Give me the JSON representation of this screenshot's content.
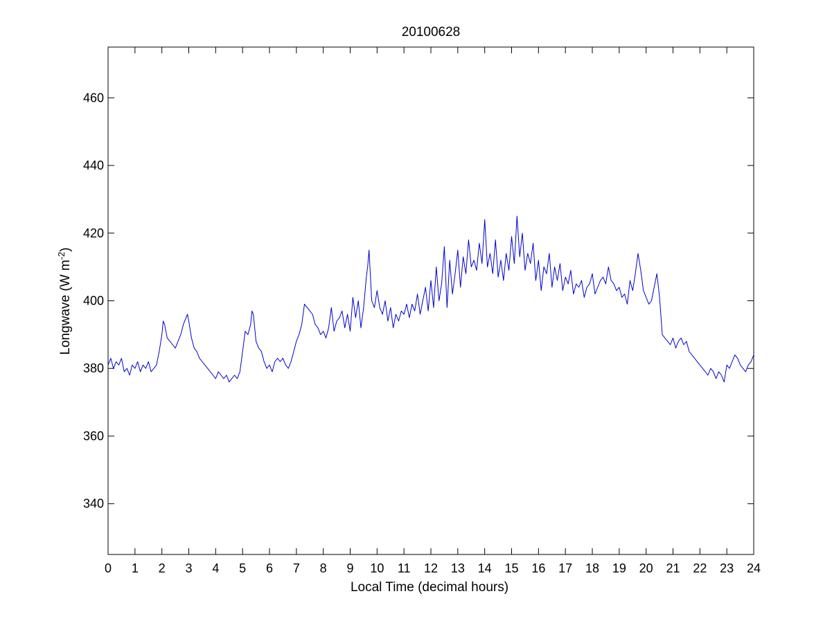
{
  "chart_data": {
    "type": "line",
    "title": "20100628",
    "xlabel": "Local Time (decimal hours)",
    "ylabel": "Longwave (W m",
    "ylabel_superscript": "-2",
    "ylabel_suffix": ")",
    "xlim": [
      0,
      24
    ],
    "ylim": [
      325,
      475
    ],
    "xticks": [
      0,
      1,
      2,
      3,
      4,
      5,
      6,
      7,
      8,
      9,
      10,
      11,
      12,
      13,
      14,
      15,
      16,
      17,
      18,
      19,
      20,
      21,
      22,
      23,
      24
    ],
    "xtick_labels": [
      "0",
      "1",
      "2",
      "3",
      "4",
      "5",
      "6",
      "7",
      "8",
      "9",
      "10",
      "11",
      "12",
      "13",
      "14",
      "15",
      "16",
      "17",
      "18",
      "19",
      "20",
      "21",
      "22",
      "23",
      "24"
    ],
    "yticks": [
      340,
      360,
      380,
      400,
      420,
      440,
      460
    ],
    "ytick_labels": [
      "340",
      "360",
      "380",
      "400",
      "420",
      "440",
      "460"
    ],
    "grid": false,
    "line_color": "#0000cc",
    "series": [
      {
        "x": [
          0.0,
          0.1,
          0.2,
          0.3,
          0.4,
          0.5,
          0.6,
          0.7,
          0.8,
          0.9,
          1.0,
          1.1,
          1.2,
          1.3,
          1.4,
          1.5,
          1.6,
          1.7,
          1.8,
          1.9,
          2.0,
          2.05,
          2.1,
          2.2,
          2.3,
          2.4,
          2.5,
          2.6,
          2.7,
          2.8,
          2.9,
          2.95,
          3.0,
          3.1,
          3.2,
          3.3,
          3.4,
          3.5,
          3.6,
          3.7,
          3.8,
          3.9,
          4.0,
          4.1,
          4.2,
          4.3,
          4.4,
          4.5,
          4.6,
          4.7,
          4.8,
          4.9,
          5.0,
          5.1,
          5.2,
          5.3,
          5.35,
          5.4,
          5.5,
          5.6,
          5.7,
          5.8,
          5.9,
          6.0,
          6.1,
          6.2,
          6.3,
          6.4,
          6.5,
          6.6,
          6.7,
          6.8,
          6.9,
          7.0,
          7.1,
          7.2,
          7.3,
          7.4,
          7.5,
          7.6,
          7.7,
          7.8,
          7.9,
          8.0,
          8.1,
          8.2,
          8.3,
          8.4,
          8.5,
          8.6,
          8.7,
          8.8,
          8.9,
          9.0,
          9.1,
          9.2,
          9.3,
          9.4,
          9.5,
          9.6,
          9.65,
          9.7,
          9.8,
          9.9,
          10.0,
          10.1,
          10.2,
          10.3,
          10.4,
          10.5,
          10.6,
          10.7,
          10.8,
          10.9,
          11.0,
          11.1,
          11.2,
          11.3,
          11.4,
          11.5,
          11.6,
          11.7,
          11.8,
          11.9,
          12.0,
          12.1,
          12.2,
          12.3,
          12.4,
          12.5,
          12.6,
          12.7,
          12.8,
          12.9,
          13.0,
          13.1,
          13.2,
          13.3,
          13.4,
          13.5,
          13.6,
          13.7,
          13.8,
          13.9,
          14.0,
          14.1,
          14.2,
          14.3,
          14.4,
          14.5,
          14.6,
          14.7,
          14.8,
          14.9,
          15.0,
          15.1,
          15.2,
          15.3,
          15.4,
          15.5,
          15.6,
          15.7,
          15.8,
          15.9,
          16.0,
          16.1,
          16.2,
          16.3,
          16.4,
          16.5,
          16.6,
          16.7,
          16.8,
          16.9,
          17.0,
          17.1,
          17.2,
          17.3,
          17.4,
          17.5,
          17.6,
          17.7,
          17.8,
          17.9,
          18.0,
          18.1,
          18.2,
          18.3,
          18.4,
          18.5,
          18.6,
          18.7,
          18.8,
          18.9,
          19.0,
          19.1,
          19.2,
          19.3,
          19.4,
          19.5,
          19.6,
          19.7,
          19.8,
          19.9,
          20.0,
          20.1,
          20.2,
          20.3,
          20.4,
          20.5,
          20.6,
          20.7,
          20.8,
          20.9,
          21.0,
          21.1,
          21.2,
          21.3,
          21.4,
          21.5,
          21.6,
          21.7,
          21.8,
          21.9,
          22.0,
          22.1,
          22.2,
          22.3,
          22.4,
          22.5,
          22.6,
          22.7,
          22.8,
          22.9,
          23.0,
          23.1,
          23.2,
          23.3,
          23.4,
          23.5,
          23.6,
          23.7,
          23.8,
          23.9,
          24.0
        ],
        "y": [
          381,
          383,
          380,
          382,
          381,
          383,
          379,
          380,
          378,
          381,
          380,
          382,
          379,
          381,
          380,
          382,
          379,
          380,
          381,
          385,
          390,
          394,
          393,
          389,
          388,
          387,
          386,
          388,
          390,
          393,
          395,
          396,
          394,
          389,
          386,
          385,
          383,
          382,
          381,
          380,
          379,
          378,
          377,
          379,
          378,
          377,
          378,
          376,
          377,
          378,
          377,
          379,
          385,
          391,
          390,
          393,
          397,
          396,
          388,
          386,
          385,
          382,
          380,
          381,
          379,
          382,
          383,
          382,
          383,
          381,
          380,
          382,
          385,
          388,
          390,
          393,
          399,
          398,
          397,
          396,
          393,
          392,
          390,
          391,
          389,
          392,
          398,
          391,
          394,
          395,
          397,
          392,
          396,
          391,
          401,
          395,
          400,
          392,
          398,
          407,
          410,
          415,
          400,
          398,
          403,
          398,
          396,
          400,
          394,
          398,
          392,
          396,
          394,
          397,
          396,
          399,
          395,
          399,
          397,
          402,
          396,
          400,
          404,
          397,
          406,
          398,
          410,
          400,
          405,
          416,
          398,
          412,
          402,
          408,
          415,
          404,
          413,
          408,
          418,
          410,
          412,
          409,
          417,
          411,
          424,
          410,
          414,
          408,
          418,
          407,
          412,
          406,
          414,
          409,
          419,
          411,
          425,
          413,
          420,
          409,
          414,
          411,
          417,
          406,
          412,
          403,
          410,
          408,
          414,
          404,
          410,
          406,
          411,
          403,
          407,
          405,
          409,
          402,
          405,
          404,
          406,
          401,
          404,
          405,
          408,
          402,
          404,
          406,
          407,
          405,
          410,
          406,
          405,
          403,
          404,
          401,
          402,
          399,
          406,
          403,
          408,
          414,
          409,
          403,
          401,
          399,
          400,
          404,
          408,
          401,
          390,
          389,
          388,
          387,
          389,
          386,
          388,
          389,
          387,
          388,
          385,
          384,
          383,
          382,
          381,
          380,
          379,
          378,
          380,
          379,
          377,
          379,
          378,
          376,
          381,
          380,
          382,
          384,
          383,
          381,
          380,
          379,
          381,
          382,
          384
        ]
      }
    ]
  }
}
